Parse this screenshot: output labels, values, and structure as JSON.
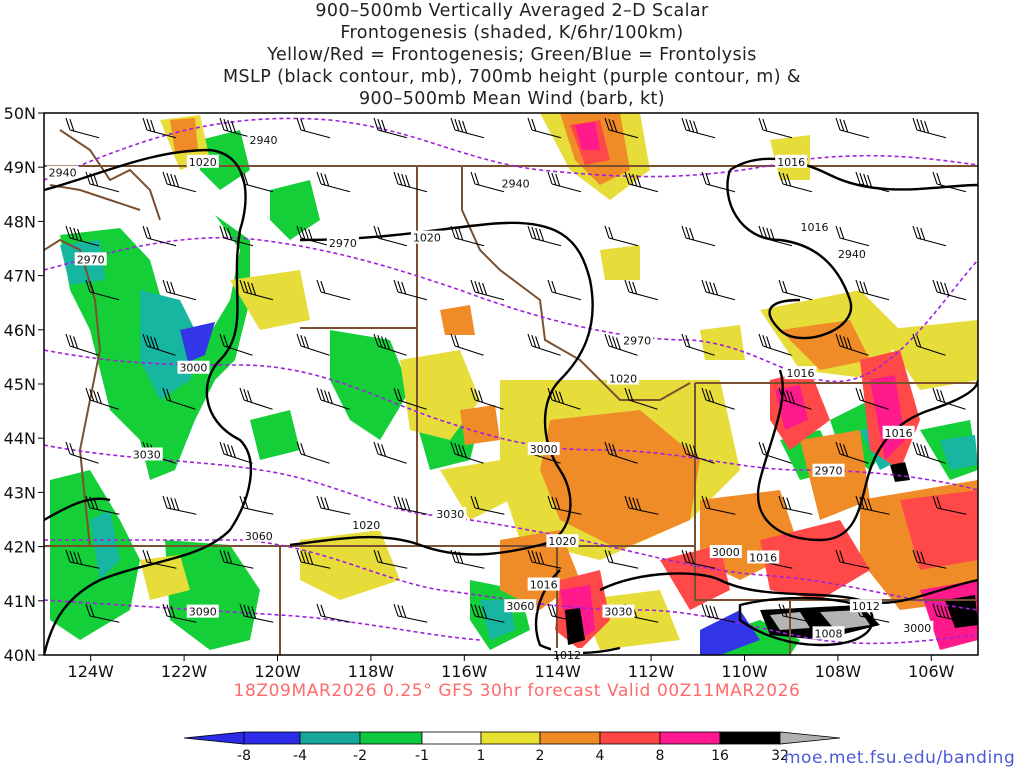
{
  "title_lines": [
    "900–500mb Vertically Averaged 2–D Scalar",
    "Frontogenesis (shaded, K/6hr/100km)",
    "Yellow/Red = Frontogenesis;  Green/Blue = Frontolysis",
    "MSLP (black contour, mb), 700mb height (purple contour, m) &",
    "900–500mb Mean Wind (barb, kt)"
  ],
  "caption": "18Z09MAR2026 0.25° GFS 30hr forecast Valid 00Z11MAR2026",
  "credit": "moe.met.fsu.edu/banding",
  "map": {
    "lat_labels": [
      "50N",
      "49N",
      "48N",
      "47N",
      "46N",
      "45N",
      "44N",
      "43N",
      "42N",
      "41N",
      "40N"
    ],
    "lon_labels": [
      "124W",
      "122W",
      "120W",
      "118W",
      "116W",
      "114W",
      "112W",
      "110W",
      "108W",
      "106W"
    ],
    "lat_range": [
      40,
      50
    ],
    "lon_range": [
      -125,
      -105
    ]
  },
  "contour_labels": [
    {
      "text": "2940",
      "lon": -120.3,
      "lat": 49.5,
      "kind": "height"
    },
    {
      "text": "1020",
      "lon": -121.6,
      "lat": 49.1,
      "kind": "mslp"
    },
    {
      "text": "2940",
      "lon": -124.6,
      "lat": 48.9,
      "kind": "height"
    },
    {
      "text": "2940",
      "lon": -114.9,
      "lat": 48.7,
      "kind": "height"
    },
    {
      "text": "1016",
      "lon": -109.0,
      "lat": 49.1,
      "kind": "mslp"
    },
    {
      "text": "1020",
      "lon": -116.8,
      "lat": 47.7,
      "kind": "mslp"
    },
    {
      "text": "2970",
      "lon": -118.6,
      "lat": 47.6,
      "kind": "height"
    },
    {
      "text": "1016",
      "lon": -108.5,
      "lat": 47.9,
      "kind": "mslp"
    },
    {
      "text": "2940",
      "lon": -107.7,
      "lat": 47.4,
      "kind": "height"
    },
    {
      "text": "2970",
      "lon": -124.0,
      "lat": 47.3,
      "kind": "height"
    },
    {
      "text": "2970",
      "lon": -112.3,
      "lat": 45.8,
      "kind": "height"
    },
    {
      "text": "3000",
      "lon": -121.8,
      "lat": 45.3,
      "kind": "height"
    },
    {
      "text": "1020",
      "lon": -112.6,
      "lat": 45.1,
      "kind": "mslp"
    },
    {
      "text": "1016",
      "lon": -108.8,
      "lat": 45.2,
      "kind": "mslp"
    },
    {
      "text": "1016",
      "lon": -106.7,
      "lat": 44.1,
      "kind": "mslp"
    },
    {
      "text": "3000",
      "lon": -114.3,
      "lat": 43.8,
      "kind": "height"
    },
    {
      "text": "3030",
      "lon": -122.8,
      "lat": 43.7,
      "kind": "height"
    },
    {
      "text": "2970",
      "lon": -108.2,
      "lat": 43.4,
      "kind": "height"
    },
    {
      "text": "3030",
      "lon": -116.3,
      "lat": 42.6,
      "kind": "height"
    },
    {
      "text": "1020",
      "lon": -118.1,
      "lat": 42.4,
      "kind": "mslp"
    },
    {
      "text": "3060",
      "lon": -120.4,
      "lat": 42.2,
      "kind": "height"
    },
    {
      "text": "1020",
      "lon": -113.9,
      "lat": 42.1,
      "kind": "mslp"
    },
    {
      "text": "3000",
      "lon": -110.4,
      "lat": 41.9,
      "kind": "height"
    },
    {
      "text": "1016",
      "lon": -109.6,
      "lat": 41.8,
      "kind": "mslp"
    },
    {
      "text": "1016",
      "lon": -114.3,
      "lat": 41.3,
      "kind": "mslp"
    },
    {
      "text": "3060",
      "lon": -114.8,
      "lat": 40.9,
      "kind": "height"
    },
    {
      "text": "1012",
      "lon": -107.4,
      "lat": 40.9,
      "kind": "mslp"
    },
    {
      "text": "3030",
      "lon": -112.7,
      "lat": 40.8,
      "kind": "height"
    },
    {
      "text": "3090",
      "lon": -121.6,
      "lat": 40.8,
      "kind": "height"
    },
    {
      "text": "1008",
      "lon": -108.2,
      "lat": 40.4,
      "kind": "mslp"
    },
    {
      "text": "3000",
      "lon": -106.3,
      "lat": 40.5,
      "kind": "height"
    },
    {
      "text": "1012",
      "lon": -113.8,
      "lat": 40.0,
      "kind": "mslp"
    }
  ],
  "colorbar": {
    "labels": [
      "-8",
      "-4",
      "-2",
      "-1",
      "1",
      "2",
      "4",
      "8",
      "16",
      "32"
    ],
    "colors": [
      "#2b2be8",
      "#15a89a",
      "#16c28a",
      "#10c840",
      "#00dc10",
      "#ffffff",
      "#e8e030",
      "#f08a22",
      "#ff4545",
      "#ff1890",
      "#000000",
      "#b0b0b0"
    ]
  },
  "colors": {
    "frontolysis_strong": "#3236e6",
    "frontolysis_teal": "#17b6a0",
    "frontolysis_green": "#14cf38",
    "frontogenesis_yellow": "#e6dc3a",
    "frontogenesis_orange": "#f08c28",
    "frontogenesis_red": "#ff4848",
    "frontogenesis_magenta": "#ff1a8c",
    "frontogenesis_black": "#000000",
    "frontogenesis_gray": "#b4b4b4",
    "mslp_contour": "#000000",
    "height_contour": "#a020e0",
    "borders": "#7a5030",
    "caption": "#ff6a6a",
    "credit": "#4a5bd8"
  }
}
